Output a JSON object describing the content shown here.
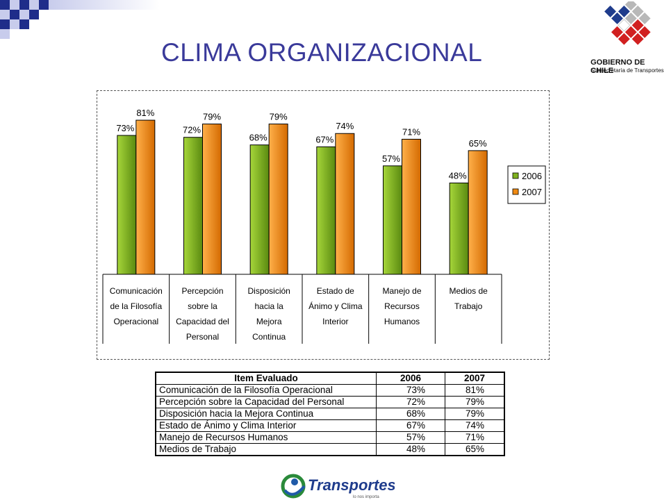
{
  "title": "CLIMA ORGANIZACIONAL",
  "logo": {
    "line1": "GOBIERNO DE CHILE",
    "line2": "Subsecretaría de Transportes"
  },
  "footer_logo": {
    "text": "Transportes",
    "tagline": "lo nos importa"
  },
  "colors": {
    "series_2006": "#7fb21e",
    "series_2007": "#f08a12",
    "title": "#3a3a9a"
  },
  "chart_data": {
    "type": "bar",
    "categories": [
      [
        "Comunicación",
        "de la Filosofía",
        "Operacional"
      ],
      [
        "Percepción",
        "sobre la",
        "Capacidad del",
        "Personal"
      ],
      [
        "Disposición",
        "hacia la",
        "Mejora",
        "Continua"
      ],
      [
        "Estado de",
        "Ánimo y Clima",
        "Interior"
      ],
      [
        "Manejo de",
        "Recursos",
        "Humanos"
      ],
      [
        "Medios de",
        "Trabajo"
      ]
    ],
    "series": [
      {
        "name": "2006",
        "values": [
          73,
          72,
          68,
          67,
          57,
          48
        ],
        "labels": [
          "73%",
          "72%",
          "68%",
          "67%",
          "57%",
          "48%"
        ]
      },
      {
        "name": "2007",
        "values": [
          81,
          79,
          79,
          74,
          71,
          65
        ],
        "labels": [
          "81%",
          "79%",
          "79%",
          "74%",
          "71%",
          "65%"
        ]
      }
    ],
    "ylim": [
      0,
      100
    ],
    "legend_position": "right",
    "grid": false
  },
  "table": {
    "headers": [
      "Item Evaluado",
      "2006",
      "2007"
    ],
    "rows": [
      [
        "Comunicación de la Filosofía Operacional",
        "73%",
        "81%"
      ],
      [
        "Percepción sobre la Capacidad del Personal",
        "72%",
        "79%"
      ],
      [
        "Disposición hacia la Mejora Continua",
        "68%",
        "79%"
      ],
      [
        "Estado de Ánimo y Clima Interior",
        "67%",
        "74%"
      ],
      [
        "Manejo de Recursos Humanos",
        "57%",
        "71%"
      ],
      [
        "Medios de Trabajo",
        "48%",
        "65%"
      ]
    ]
  }
}
